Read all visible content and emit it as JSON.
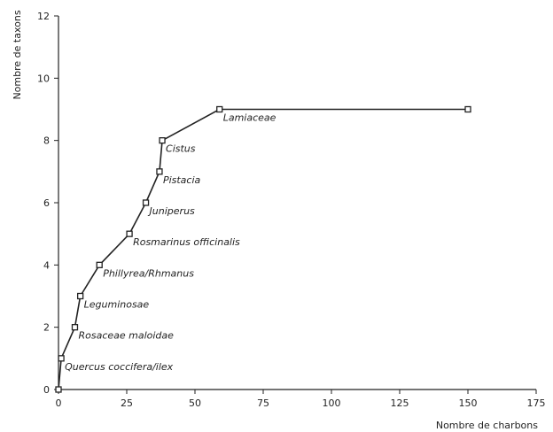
{
  "chart_data": {
    "type": "line",
    "xlabel": "Nombre de charbons",
    "ylabel": "Nombre de taxons",
    "xlim": [
      0,
      175
    ],
    "ylim": [
      0,
      12
    ],
    "xticks": [
      0,
      25,
      50,
      75,
      100,
      125,
      150,
      175
    ],
    "yticks": [
      0,
      2,
      4,
      6,
      8,
      10,
      12
    ],
    "grid": false,
    "colors": {
      "line": "#222222",
      "marker_fill": "#ffffff"
    },
    "points": [
      {
        "x": 0,
        "y": 0,
        "label": ""
      },
      {
        "x": 1,
        "y": 1,
        "label": "Quercus coccifera/ilex"
      },
      {
        "x": 6,
        "y": 2,
        "label": "Rosaceae maloidae"
      },
      {
        "x": 8,
        "y": 3,
        "label": "Leguminosae"
      },
      {
        "x": 15,
        "y": 4,
        "label": "Phillyrea/Rhmanus"
      },
      {
        "x": 26,
        "y": 5,
        "label": "Rosmarinus officinalis"
      },
      {
        "x": 32,
        "y": 6,
        "label": "Juniperus"
      },
      {
        "x": 37,
        "y": 7,
        "label": "Pistacia"
      },
      {
        "x": 38,
        "y": 8,
        "label": "Cistus"
      },
      {
        "x": 59,
        "y": 9,
        "label": "Lamiaceae"
      },
      {
        "x": 150,
        "y": 9,
        "label": ""
      }
    ]
  }
}
